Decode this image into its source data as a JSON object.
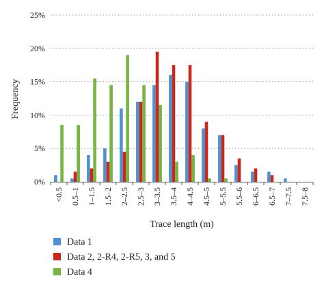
{
  "chart_data": {
    "type": "bar",
    "title": "",
    "xlabel": "Trace length (m)",
    "ylabel": "Frequency",
    "ylim": [
      0,
      25
    ],
    "yticks": [
      "0%",
      "5%",
      "10%",
      "15%",
      "20%",
      "25%"
    ],
    "grid": true,
    "legend_position": "bottom-left",
    "categories": [
      "<0.5",
      "0.5–1",
      "1–1.5",
      "1.5–2",
      "2–2.5",
      "2.5–3",
      "3–3.5",
      "3.5–4",
      "4–4.5",
      "4.5–5",
      "5–5.5",
      "5.5–6",
      "6–6.5",
      "6.5–7",
      "7–7.5",
      "7.5–8"
    ],
    "series": [
      {
        "name": "Data 1",
        "color": "#4f91d0",
        "values": [
          1,
          0.5,
          4,
          5,
          11,
          12,
          14.5,
          16,
          15,
          8,
          7,
          2.5,
          1.5,
          1.5,
          0.5,
          0
        ]
      },
      {
        "name": "Data 2, 2-R4, 2-R5, 3, and 5",
        "color": "#c8281e",
        "values": [
          0,
          1.5,
          2,
          3,
          4.5,
          12,
          19.5,
          17.5,
          17.5,
          9,
          7,
          3.5,
          2,
          1,
          0,
          0
        ]
      },
      {
        "name": "Data 4",
        "color": "#77b444",
        "values": [
          8.5,
          8.5,
          15.5,
          14.5,
          19,
          14.5,
          11.5,
          3,
          4,
          0.5,
          0.5,
          0,
          0,
          0,
          0,
          0
        ]
      }
    ]
  }
}
